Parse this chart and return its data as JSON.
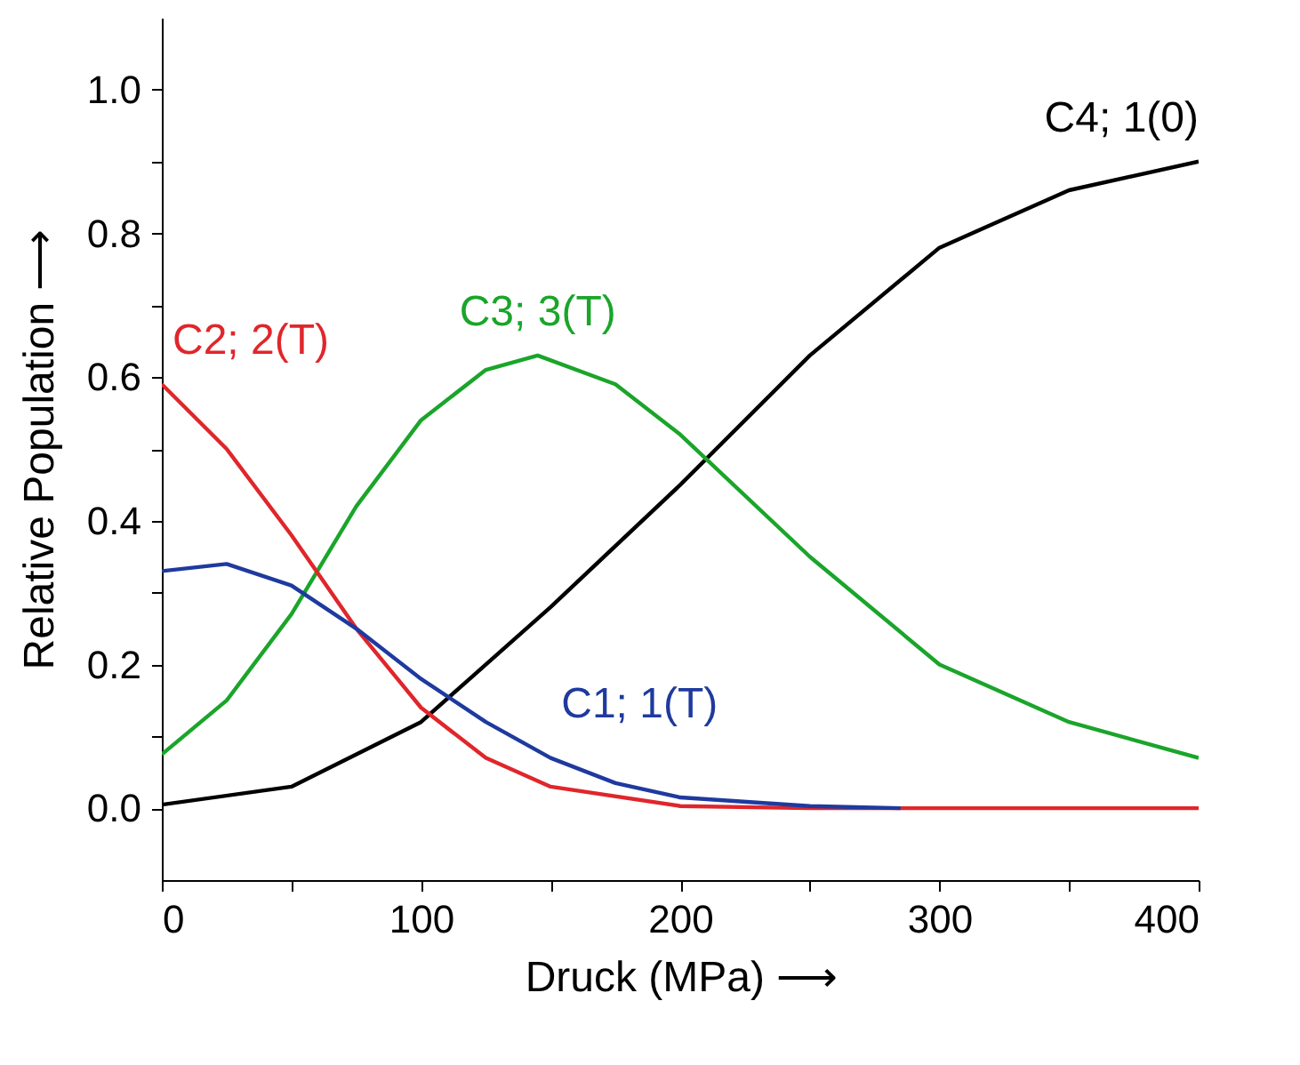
{
  "chart_data": {
    "type": "line",
    "xlabel": "Druck (MPa) ⟶",
    "ylabel": "Relative Population ⟶",
    "xlim": [
      0,
      400
    ],
    "ylim": [
      -0.1,
      1.1
    ],
    "xticks": [
      0,
      {
        "value": 50,
        "label": null
      },
      100,
      {
        "value": 150,
        "label": null
      },
      200,
      {
        "value": 250,
        "label": null
      },
      300,
      {
        "value": 350,
        "label": null
      },
      400
    ],
    "yticks": [
      {
        "value": 0,
        "label": "0.0"
      },
      {
        "value": 0.1,
        "label": null
      },
      {
        "value": 0.2,
        "label": "0.2"
      },
      {
        "value": 0.3,
        "label": null
      },
      {
        "value": 0.4,
        "label": "0.4"
      },
      {
        "value": 0.5,
        "label": null
      },
      {
        "value": 0.6,
        "label": "0.6"
      },
      {
        "value": 0.7,
        "label": null
      },
      {
        "value": 0.8,
        "label": "0.8"
      },
      {
        "value": 0.9,
        "label": null
      },
      {
        "value": 1,
        "label": "1.0"
      }
    ],
    "grid": false,
    "legend": false,
    "marker": "none",
    "line_style": "solid",
    "series": [
      {
        "name": "C4; 1(0)",
        "color": "#000000",
        "x": [
          0,
          50,
          100,
          150,
          200,
          250,
          300,
          350,
          400
        ],
        "values": [
          0.005,
          0.03,
          0.12,
          0.28,
          0.45,
          0.63,
          0.78,
          0.86,
          0.9
        ]
      },
      {
        "name": "C3; 3(T)",
        "color": "#1aa52a",
        "x": [
          0,
          25,
          50,
          75,
          100,
          125,
          145,
          175,
          200,
          250,
          300,
          350,
          400
        ],
        "values": [
          0.075,
          0.15,
          0.27,
          0.42,
          0.54,
          0.61,
          0.63,
          0.59,
          0.52,
          0.35,
          0.2,
          0.12,
          0.07
        ]
      },
      {
        "name": "C2; 2(T)",
        "color": "#e0262b",
        "x": [
          0,
          25,
          50,
          75,
          100,
          125,
          150,
          200,
          250,
          300,
          400
        ],
        "values": [
          0.59,
          0.5,
          0.38,
          0.25,
          0.14,
          0.07,
          0.03,
          0.003,
          0,
          0,
          0
        ]
      },
      {
        "name": "C1; 1(T)",
        "color": "#1f3a9e",
        "x": [
          0,
          25,
          50,
          75,
          100,
          125,
          150,
          175,
          200,
          250,
          285
        ],
        "values": [
          0.33,
          0.34,
          0.31,
          0.25,
          0.18,
          0.12,
          0.07,
          0.035,
          0.015,
          0.003,
          0
        ]
      }
    ]
  }
}
